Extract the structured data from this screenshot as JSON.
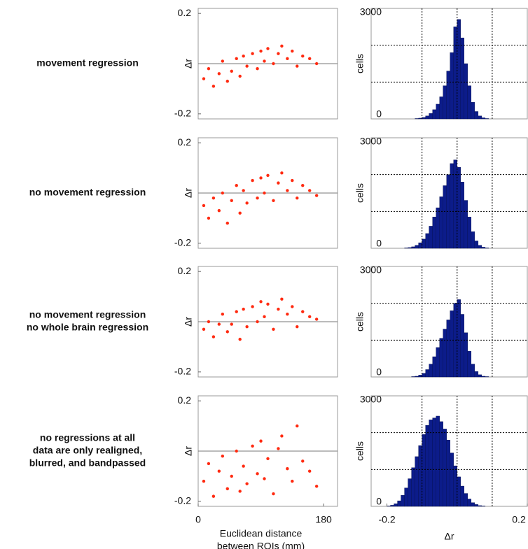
{
  "chart_data": [
    {
      "type": "scatter",
      "row_label": [
        "movement regression"
      ],
      "ylabel": "Δr",
      "color": "#ff2a10",
      "xlim": [
        0,
        200
      ],
      "ylim": [
        -0.22,
        0.22
      ],
      "yticks": [
        -0.2,
        0.2
      ],
      "reference_line": 0,
      "x": [
        8,
        15,
        22,
        30,
        35,
        42,
        48,
        55,
        60,
        65,
        70,
        78,
        85,
        90,
        95,
        100,
        108,
        115,
        120,
        128,
        135,
        142,
        150,
        160,
        170
      ],
      "y": [
        -0.06,
        -0.02,
        -0.09,
        -0.04,
        0.01,
        -0.07,
        -0.03,
        0.02,
        -0.05,
        0.03,
        -0.01,
        0.04,
        -0.02,
        0.05,
        0.01,
        0.06,
        0.0,
        0.04,
        0.07,
        0.02,
        0.05,
        -0.01,
        0.03,
        0.02,
        0.0
      ]
    },
    {
      "type": "histogram",
      "ylabel": "cells",
      "color": "#0c1c8a",
      "xlim": [
        -0.245,
        0.2
      ],
      "ylim": [
        0,
        3000
      ],
      "yticks": [
        0,
        3000
      ],
      "ygrid": [
        1000,
        2000
      ],
      "xgrid": [
        -0.1,
        0,
        0.1
      ],
      "bins": [
        -0.2,
        -0.19,
        -0.18,
        -0.17,
        -0.16,
        -0.15,
        -0.14,
        -0.13,
        -0.12,
        -0.11,
        -0.1,
        -0.09,
        -0.08,
        -0.07,
        -0.06,
        -0.05,
        -0.04,
        -0.03,
        -0.02,
        -0.01,
        0,
        0.01,
        0.02,
        0.03,
        0.04,
        0.05,
        0.06,
        0.07,
        0.08,
        0.09,
        0.1,
        0.11,
        0.12,
        0.13,
        0.14,
        0.15,
        0.16,
        0.17,
        0.18,
        0.19,
        0.2
      ],
      "counts": [
        0,
        0,
        0,
        0,
        0,
        0,
        0,
        0,
        10,
        20,
        40,
        80,
        150,
        250,
        400,
        600,
        900,
        1300,
        1800,
        2500,
        2700,
        2200,
        1500,
        900,
        450,
        200,
        80,
        30,
        10,
        0,
        0,
        0,
        0,
        0,
        0,
        0,
        0,
        0,
        0,
        0
      ]
    },
    {
      "type": "scatter",
      "row_label": [
        "no movement regression"
      ],
      "ylabel": "Δr",
      "color": "#ff2a10",
      "xlim": [
        0,
        200
      ],
      "ylim": [
        -0.22,
        0.22
      ],
      "yticks": [
        -0.2,
        0.2
      ],
      "reference_line": 0,
      "x": [
        8,
        15,
        22,
        30,
        35,
        42,
        48,
        55,
        60,
        65,
        70,
        78,
        85,
        90,
        95,
        100,
        108,
        115,
        120,
        128,
        135,
        142,
        150,
        160,
        170
      ],
      "y": [
        -0.05,
        -0.1,
        -0.02,
        -0.07,
        0.0,
        -0.12,
        -0.03,
        0.03,
        -0.08,
        0.01,
        -0.04,
        0.05,
        -0.02,
        0.06,
        0.0,
        0.07,
        -0.03,
        0.04,
        0.08,
        0.01,
        0.05,
        -0.02,
        0.03,
        0.01,
        -0.01
      ]
    },
    {
      "type": "histogram",
      "ylabel": "cells",
      "color": "#0c1c8a",
      "xlim": [
        -0.245,
        0.2
      ],
      "ylim": [
        0,
        3000
      ],
      "yticks": [
        0,
        3000
      ],
      "ygrid": [
        1000,
        2000
      ],
      "xgrid": [
        -0.1,
        0,
        0.1
      ],
      "bins": [
        -0.2,
        -0.19,
        -0.18,
        -0.17,
        -0.16,
        -0.15,
        -0.14,
        -0.13,
        -0.12,
        -0.11,
        -0.1,
        -0.09,
        -0.08,
        -0.07,
        -0.06,
        -0.05,
        -0.04,
        -0.03,
        -0.02,
        -0.01,
        0,
        0.01,
        0.02,
        0.03,
        0.04,
        0.05,
        0.06,
        0.07,
        0.08,
        0.09,
        0.1,
        0.11,
        0.12,
        0.13,
        0.14,
        0.15,
        0.16,
        0.17,
        0.18,
        0.19,
        0.2
      ],
      "counts": [
        0,
        0,
        0,
        0,
        0,
        10,
        20,
        40,
        80,
        150,
        250,
        400,
        600,
        850,
        1100,
        1400,
        1700,
        2000,
        2300,
        2400,
        2200,
        1800,
        1300,
        850,
        450,
        200,
        80,
        30,
        10,
        0,
        0,
        0,
        0,
        0,
        0,
        0,
        0,
        0,
        0,
        0
      ]
    },
    {
      "type": "scatter",
      "row_label": [
        "no movement regression",
        "no whole brain regression"
      ],
      "ylabel": "Δr",
      "color": "#ff2a10",
      "xlim": [
        0,
        200
      ],
      "ylim": [
        -0.22,
        0.22
      ],
      "yticks": [
        -0.2,
        0.2
      ],
      "reference_line": 0,
      "x": [
        8,
        15,
        22,
        30,
        35,
        42,
        48,
        55,
        60,
        65,
        70,
        78,
        85,
        90,
        95,
        100,
        108,
        115,
        120,
        128,
        135,
        142,
        150,
        160,
        170
      ],
      "y": [
        -0.03,
        0.0,
        -0.06,
        -0.01,
        0.03,
        -0.04,
        -0.01,
        0.04,
        -0.07,
        0.05,
        -0.02,
        0.06,
        0.0,
        0.08,
        0.02,
        0.07,
        -0.03,
        0.05,
        0.09,
        0.03,
        0.06,
        -0.02,
        0.04,
        0.02,
        0.01
      ]
    },
    {
      "type": "histogram",
      "ylabel": "cells",
      "color": "#0c1c8a",
      "xlim": [
        -0.245,
        0.2
      ],
      "ylim": [
        0,
        3000
      ],
      "yticks": [
        0,
        3000
      ],
      "ygrid": [
        1000,
        2000
      ],
      "xgrid": [
        -0.1,
        0,
        0.1
      ],
      "bins": [
        -0.2,
        -0.19,
        -0.18,
        -0.17,
        -0.16,
        -0.15,
        -0.14,
        -0.13,
        -0.12,
        -0.11,
        -0.1,
        -0.09,
        -0.08,
        -0.07,
        -0.06,
        -0.05,
        -0.04,
        -0.03,
        -0.02,
        -0.01,
        0,
        0.01,
        0.02,
        0.03,
        0.04,
        0.05,
        0.06,
        0.07,
        0.08,
        0.09,
        0.1,
        0.11,
        0.12,
        0.13,
        0.14,
        0.15,
        0.16,
        0.17,
        0.18,
        0.19,
        0.2
      ],
      "counts": [
        0,
        0,
        0,
        0,
        0,
        0,
        0,
        10,
        20,
        50,
        100,
        200,
        350,
        550,
        800,
        1050,
        1300,
        1550,
        1800,
        2000,
        2100,
        1700,
        1200,
        700,
        350,
        150,
        60,
        20,
        10,
        0,
        0,
        0,
        0,
        0,
        0,
        0,
        0,
        0,
        0,
        0
      ]
    },
    {
      "type": "scatter",
      "row_label": [
        "no regressions at all",
        "data are only realigned,",
        "blurred, and bandpassed"
      ],
      "ylabel": "Δr",
      "color": "#ff2a10",
      "xlim": [
        0,
        200
      ],
      "ylim": [
        -0.22,
        0.22
      ],
      "yticks": [
        -0.2,
        0.2
      ],
      "xticks": [
        0,
        180
      ],
      "reference_line": 0,
      "xlabel": [
        "Euclidean distance",
        "between ROIs (mm)"
      ],
      "x": [
        8,
        15,
        22,
        30,
        35,
        42,
        48,
        55,
        60,
        65,
        70,
        78,
        85,
        90,
        95,
        100,
        108,
        115,
        120,
        128,
        135,
        142,
        150,
        160,
        170
      ],
      "y": [
        -0.12,
        -0.05,
        -0.18,
        -0.08,
        -0.02,
        -0.15,
        -0.1,
        0.0,
        -0.16,
        -0.06,
        -0.13,
        0.02,
        -0.09,
        0.04,
        -0.11,
        -0.03,
        -0.17,
        0.01,
        0.06,
        -0.07,
        -0.12,
        0.1,
        -0.04,
        -0.08,
        -0.14
      ]
    },
    {
      "type": "histogram",
      "ylabel": "cells",
      "color": "#0c1c8a",
      "xlabel": [
        "Δr"
      ],
      "xlim": [
        -0.245,
        0.2
      ],
      "ylim": [
        0,
        3000
      ],
      "yticks": [
        0,
        3000
      ],
      "ygrid": [
        1000,
        2000
      ],
      "xgrid": [
        -0.1,
        0,
        0.1
      ],
      "xticks": [
        -0.2,
        0.2
      ],
      "bins": [
        -0.2,
        -0.19,
        -0.18,
        -0.17,
        -0.16,
        -0.15,
        -0.14,
        -0.13,
        -0.12,
        -0.11,
        -0.1,
        -0.09,
        -0.08,
        -0.07,
        -0.06,
        -0.05,
        -0.04,
        -0.03,
        -0.02,
        -0.01,
        0,
        0.01,
        0.02,
        0.03,
        0.04,
        0.05,
        0.06,
        0.07,
        0.08,
        0.09,
        0.1,
        0.11,
        0.12,
        0.13,
        0.14,
        0.15,
        0.16,
        0.17,
        0.18,
        0.19,
        0.2
      ],
      "counts": [
        10,
        30,
        70,
        150,
        300,
        500,
        750,
        1050,
        1350,
        1650,
        1950,
        2200,
        2350,
        2400,
        2450,
        2300,
        2100,
        1800,
        1450,
        1100,
        800,
        550,
        350,
        200,
        100,
        50,
        20,
        10,
        0,
        0,
        0,
        0,
        0,
        0,
        0,
        0,
        0,
        0,
        0,
        0
      ]
    }
  ]
}
